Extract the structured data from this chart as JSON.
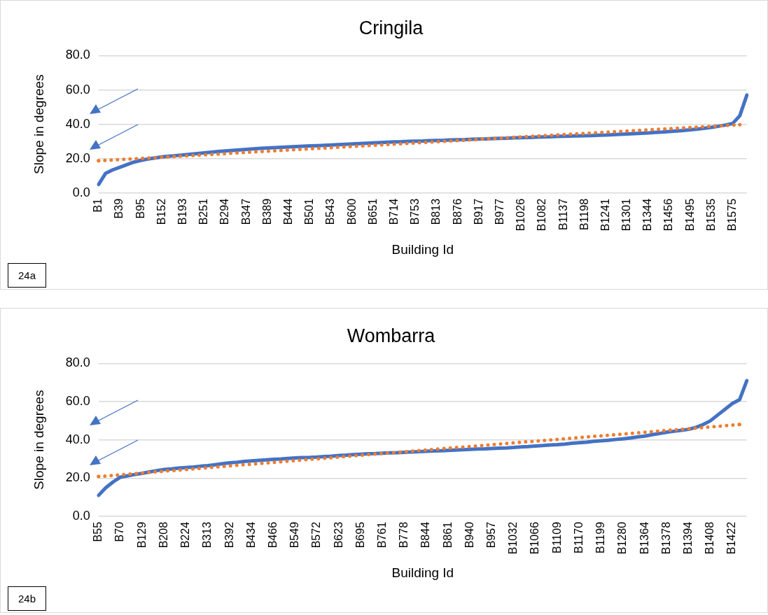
{
  "chart_data": [
    {
      "type": "line",
      "title": "Cringila",
      "xlabel": "Building Id",
      "ylabel": "Slope in degrees",
      "annotations": [
        "24a"
      ],
      "grid": "y",
      "marker": "none",
      "categories": [
        "B1",
        null,
        null,
        "B39",
        null,
        null,
        "B95",
        null,
        null,
        "B152",
        null,
        null,
        "B193",
        null,
        null,
        "B251",
        null,
        null,
        "B294",
        null,
        null,
        "B347",
        null,
        null,
        "B389",
        null,
        null,
        "B444",
        null,
        null,
        "B501",
        null,
        null,
        "B543",
        null,
        null,
        "B600",
        null,
        null,
        "B651",
        null,
        null,
        "B714",
        null,
        null,
        "B753",
        null,
        null,
        "B813",
        null,
        null,
        "B876",
        null,
        null,
        "B917",
        null,
        null,
        "B977",
        null,
        null,
        "B1026",
        null,
        null,
        "B1082",
        null,
        null,
        "B1137",
        null,
        null,
        "B1198",
        null,
        null,
        "B1241",
        null,
        null,
        "B1301",
        null,
        null,
        "B1344",
        null,
        null,
        "B1456",
        null,
        null,
        "B1495",
        null,
        null,
        "B1535",
        null,
        null,
        "B1575",
        null,
        null
      ],
      "ylim": [
        0,
        80
      ],
      "yticks": [
        {
          "value": 0,
          "label": "0.0"
        },
        {
          "value": 20,
          "label": "20.0"
        },
        {
          "value": 40,
          "label": "40.0"
        },
        {
          "value": 60,
          "label": "60.0"
        },
        {
          "value": 80,
          "label": "80.0"
        }
      ],
      "series": [
        {
          "color": "#4472c4",
          "line_style": "solid",
          "values": [
            5,
            11.5,
            13.5,
            15,
            16.5,
            18,
            19,
            19.8,
            20.4,
            21,
            21.4,
            21.8,
            22.2,
            22.6,
            23,
            23.4,
            23.8,
            24.2,
            24.5,
            24.8,
            25.1,
            25.4,
            25.7,
            26,
            26.2,
            26.4,
            26.6,
            26.8,
            27,
            27.2,
            27.4,
            27.6,
            27.8,
            28,
            28.2,
            28.4,
            28.6,
            28.8,
            29,
            29.2,
            29.4,
            29.6,
            29.8,
            29.9,
            30.1,
            30.2,
            30.3,
            30.5,
            30.6,
            30.7,
            30.9,
            31,
            31.1,
            31.3,
            31.4,
            31.5,
            31.7,
            31.8,
            31.9,
            32.1,
            32.2,
            32.3,
            32.5,
            32.6,
            32.7,
            32.9,
            33,
            33.1,
            33.3,
            33.4,
            33.5,
            33.7,
            33.8,
            34,
            34.2,
            34.4,
            34.6,
            34.8,
            35,
            35.3,
            35.5,
            35.8,
            36.1,
            36.4,
            36.8,
            37.2,
            37.7,
            38.2,
            38.9,
            39.6,
            40.5,
            45,
            57
          ]
        },
        {
          "type": "line",
          "color": "#ed7d31",
          "line_style": "dotted",
          "values": [
            18.8,
            null,
            null,
            null,
            null,
            null,
            null,
            null,
            null,
            null,
            null,
            null,
            null,
            null,
            null,
            null,
            null,
            null,
            null,
            null,
            null,
            null,
            null,
            null,
            null,
            null,
            null,
            null,
            null,
            null,
            null,
            null,
            null,
            null,
            null,
            null,
            null,
            null,
            null,
            null,
            null,
            null,
            null,
            null,
            null,
            null,
            null,
            null,
            null,
            null,
            null,
            null,
            null,
            null,
            null,
            null,
            null,
            null,
            null,
            null,
            null,
            null,
            null,
            null,
            null,
            null,
            null,
            null,
            null,
            null,
            null,
            null,
            null,
            null,
            null,
            null,
            null,
            null,
            null,
            null,
            null,
            null,
            null,
            null,
            null,
            null,
            null,
            null,
            null,
            null,
            null,
            39.8,
            null
          ]
        }
      ]
    },
    {
      "type": "line",
      "title": "Wombarra",
      "xlabel": "Building Id",
      "ylabel": "Slope in degrees",
      "annotations": [
        "24b"
      ],
      "grid": "y",
      "marker": "none",
      "categories": [
        "B55",
        null,
        null,
        "B70",
        null,
        null,
        "B129",
        null,
        null,
        "B208",
        null,
        null,
        "B224",
        null,
        null,
        "B313",
        null,
        null,
        "B392",
        null,
        null,
        "B434",
        null,
        null,
        "B466",
        null,
        null,
        "B549",
        null,
        null,
        "B572",
        null,
        null,
        "B623",
        null,
        null,
        "B695",
        null,
        null,
        "B761",
        null,
        null,
        "B778",
        null,
        null,
        "B844",
        null,
        null,
        "B861",
        null,
        null,
        "B940",
        null,
        null,
        "B957",
        null,
        null,
        "B1032",
        null,
        null,
        "B1066",
        null,
        null,
        "B1109",
        null,
        null,
        "B1170",
        null,
        null,
        "B1199",
        null,
        null,
        "B1280",
        null,
        null,
        "B1364",
        null,
        null,
        "B1378",
        null,
        null,
        "B1394",
        null,
        null,
        "B1408",
        null,
        null,
        "B1422",
        null,
        null
      ],
      "ylim": [
        0,
        80
      ],
      "yticks": [
        {
          "value": 0,
          "label": "0.0"
        },
        {
          "value": 20,
          "label": "20.0"
        },
        {
          "value": 40,
          "label": "40.0"
        },
        {
          "value": 60,
          "label": "60.0"
        },
        {
          "value": 80,
          "label": "80.0"
        }
      ],
      "series": [
        {
          "color": "#4472c4",
          "line_style": "solid",
          "values": [
            11,
            15,
            18,
            20.5,
            21.2,
            21.9,
            22.5,
            23.2,
            23.9,
            24.5,
            24.8,
            25.2,
            25.5,
            25.8,
            26.2,
            26.5,
            27,
            27.5,
            28,
            28.3,
            28.7,
            29,
            29.3,
            29.5,
            29.8,
            30,
            30.3,
            30.5,
            30.7,
            30.8,
            31,
            31.3,
            31.5,
            31.8,
            32,
            32.3,
            32.5,
            32.7,
            32.8,
            33,
            33.2,
            33.3,
            33.5,
            33.7,
            33.8,
            34,
            34.2,
            34.3,
            34.5,
            34.7,
            34.8,
            35,
            35.2,
            35.3,
            35.5,
            35.7,
            35.8,
            36,
            36.3,
            36.5,
            36.8,
            37,
            37.3,
            37.5,
            37.8,
            38.2,
            38.5,
            38.8,
            39.2,
            39.5,
            39.8,
            40.2,
            40.5,
            41,
            41.5,
            42,
            42.7,
            43.3,
            44,
            44.5,
            45,
            45.5,
            46.5,
            48,
            50,
            53,
            56,
            59,
            61,
            71
          ]
        },
        {
          "type": "line",
          "color": "#ed7d31",
          "line_style": "dotted",
          "values": [
            20.8,
            null,
            null,
            null,
            null,
            null,
            null,
            null,
            null,
            null,
            null,
            null,
            null,
            null,
            null,
            null,
            null,
            null,
            null,
            null,
            null,
            null,
            null,
            null,
            null,
            null,
            null,
            null,
            null,
            null,
            null,
            null,
            null,
            null,
            null,
            null,
            null,
            null,
            null,
            null,
            null,
            null,
            null,
            null,
            null,
            null,
            null,
            null,
            null,
            null,
            null,
            null,
            null,
            null,
            null,
            null,
            null,
            null,
            null,
            null,
            null,
            null,
            null,
            null,
            null,
            null,
            null,
            null,
            null,
            null,
            null,
            null,
            null,
            null,
            null,
            null,
            null,
            null,
            null,
            null,
            null,
            null,
            null,
            null,
            null,
            null,
            null,
            null,
            48,
            null
          ]
        }
      ]
    }
  ]
}
